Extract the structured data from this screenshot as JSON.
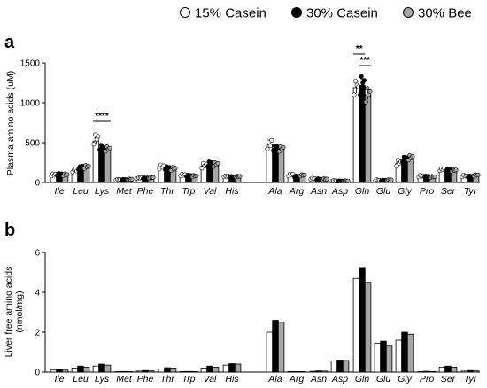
{
  "legend": {
    "items": [
      {
        "label": "15% Casein",
        "fill": "#ffffff"
      },
      {
        "label": "30% Casein",
        "fill": "#000000"
      },
      {
        "label": "30% Bee",
        "fill": "#a6a6a6"
      }
    ]
  },
  "chart_data": [
    {
      "type": "bar",
      "panel": "a",
      "ylabel": "Plasma amino acids (uM)",
      "ylim": [
        0,
        1500
      ],
      "yticks": [
        0,
        500,
        1000,
        1500
      ],
      "categories": [
        "Ile",
        "Leu",
        "Lys",
        "Met",
        "Phe",
        "Thr",
        "Trp",
        "Val",
        "His",
        "Ala",
        "Arg",
        "Asn",
        "Asp",
        "Gln",
        "Glu",
        "Gly",
        "Pro",
        "Ser",
        "Tyr"
      ],
      "series": [
        {
          "name": "15% Casein",
          "values": [
            95,
            150,
            520,
            35,
            55,
            190,
            95,
            210,
            75,
            470,
            95,
            45,
            20,
            1190,
            30,
            245,
            80,
            160,
            80
          ]
        },
        {
          "name": "30% Casein",
          "values": [
            100,
            185,
            440,
            35,
            55,
            180,
            85,
            230,
            70,
            430,
            75,
            40,
            18,
            1220,
            25,
            290,
            75,
            155,
            75
          ]
        },
        {
          "name": "30% Bee",
          "values": [
            95,
            195,
            420,
            40,
            60,
            170,
            80,
            225,
            75,
            420,
            90,
            40,
            18,
            1100,
            30,
            310,
            70,
            150,
            90
          ]
        }
      ],
      "errors": [
        [
          10,
          15,
          40,
          5,
          5,
          15,
          10,
          20,
          5,
          30,
          10,
          5,
          3,
          70,
          5,
          20,
          8,
          10,
          10
        ],
        [
          10,
          15,
          25,
          5,
          5,
          15,
          8,
          25,
          5,
          25,
          8,
          5,
          3,
          80,
          5,
          25,
          8,
          10,
          10
        ],
        [
          10,
          15,
          25,
          5,
          5,
          15,
          8,
          20,
          5,
          25,
          10,
          5,
          3,
          60,
          5,
          25,
          8,
          10,
          10
        ]
      ],
      "points": [
        [
          [
            80,
            110,
            90,
            105
          ],
          [
            130,
            160,
            170,
            145
          ],
          [
            480,
            600,
            540,
            580
          ],
          [
            30,
            40,
            35,
            38
          ],
          [
            50,
            60,
            55,
            58
          ],
          [
            170,
            220,
            190,
            210
          ],
          [
            85,
            105,
            90,
            100
          ],
          [
            180,
            240,
            210,
            230
          ],
          [
            70,
            85,
            75,
            80
          ],
          [
            420,
            510,
            460,
            530
          ],
          [
            80,
            110,
            95,
            105
          ],
          [
            40,
            55,
            45,
            50
          ],
          [
            15,
            25,
            20,
            22
          ],
          [
            1100,
            1270,
            1220,
            1200
          ],
          [
            25,
            35,
            30,
            28
          ],
          [
            210,
            280,
            240,
            260
          ],
          [
            70,
            90,
            80,
            85
          ],
          [
            150,
            170,
            160,
            175
          ],
          [
            70,
            95,
            80,
            85
          ]
        ],
        [
          [
            90,
            115,
            100,
            110
          ],
          [
            160,
            200,
            190,
            205
          ],
          [
            410,
            470,
            450,
            440
          ],
          [
            30,
            40,
            35,
            38
          ],
          [
            50,
            60,
            55,
            58
          ],
          [
            160,
            200,
            185,
            190
          ],
          [
            75,
            95,
            85,
            90
          ],
          [
            200,
            260,
            230,
            250
          ],
          [
            65,
            78,
            70,
            74
          ],
          [
            400,
            460,
            430,
            450
          ],
          [
            65,
            85,
            75,
            80
          ],
          [
            35,
            48,
            40,
            42
          ],
          [
            14,
            22,
            18,
            20
          ],
          [
            1100,
            1330,
            1250,
            1280
          ],
          [
            22,
            30,
            26,
            28
          ],
          [
            260,
            320,
            290,
            310
          ],
          [
            68,
            82,
            75,
            78
          ],
          [
            145,
            165,
            155,
            162
          ],
          [
            65,
            85,
            75,
            80
          ]
        ],
        [
          [
            85,
            110,
            95,
            100
          ],
          [
            175,
            215,
            195,
            205
          ],
          [
            390,
            450,
            420,
            430
          ],
          [
            35,
            45,
            40,
            42
          ],
          [
            55,
            65,
            60,
            62
          ],
          [
            150,
            190,
            170,
            180
          ],
          [
            70,
            90,
            80,
            85
          ],
          [
            200,
            250,
            225,
            240
          ],
          [
            68,
            82,
            75,
            78
          ],
          [
            390,
            450,
            420,
            440
          ],
          [
            80,
            100,
            90,
            95
          ],
          [
            35,
            48,
            40,
            44
          ],
          [
            14,
            22,
            18,
            20
          ],
          [
            1010,
            1180,
            1100,
            1140
          ],
          [
            25,
            35,
            30,
            32
          ],
          [
            280,
            340,
            310,
            325
          ],
          [
            62,
            78,
            70,
            74
          ],
          [
            140,
            160,
            150,
            158
          ],
          [
            80,
            100,
            90,
            95
          ]
        ]
      ],
      "annotations": [
        {
          "label": "****",
          "category": "Lys"
        },
        {
          "label": "**",
          "category": "Gln"
        },
        {
          "label": "***",
          "category": "Gln"
        }
      ]
    },
    {
      "type": "bar",
      "panel": "b",
      "ylabel": "Liver free amino acids\n(nmol/mg)",
      "ylim": [
        0,
        6
      ],
      "yticks": [
        0,
        2,
        4,
        6
      ],
      "categories": [
        "Ile",
        "Leu",
        "Lys",
        "Met",
        "Phe",
        "Thr",
        "Trp",
        "Val",
        "His",
        "Ala",
        "Arg",
        "Asn",
        "Asp",
        "Gln",
        "Glu",
        "Gly",
        "Pro",
        "Ser",
        "Tyr"
      ],
      "series": [
        {
          "name": "15% Casein",
          "values": [
            0.1,
            0.2,
            0.3,
            0.02,
            0.05,
            0.15,
            0.02,
            0.2,
            0.35,
            2.0,
            0.0,
            0.04,
            0.55,
            4.7,
            1.45,
            1.6,
            0.02,
            0.25,
            0.05
          ]
        },
        {
          "name": "30% Casein",
          "values": [
            0.15,
            0.3,
            0.4,
            0.03,
            0.08,
            0.22,
            0.03,
            0.3,
            0.42,
            2.6,
            0.0,
            0.06,
            0.6,
            5.25,
            1.55,
            2.0,
            0.04,
            0.3,
            0.08
          ]
        },
        {
          "name": "30% Bee",
          "values": [
            0.1,
            0.25,
            0.35,
            0.02,
            0.06,
            0.2,
            0.02,
            0.25,
            0.4,
            2.5,
            0.0,
            0.05,
            0.58,
            4.5,
            1.3,
            1.9,
            0.03,
            0.25,
            0.06
          ]
        }
      ]
    }
  ]
}
